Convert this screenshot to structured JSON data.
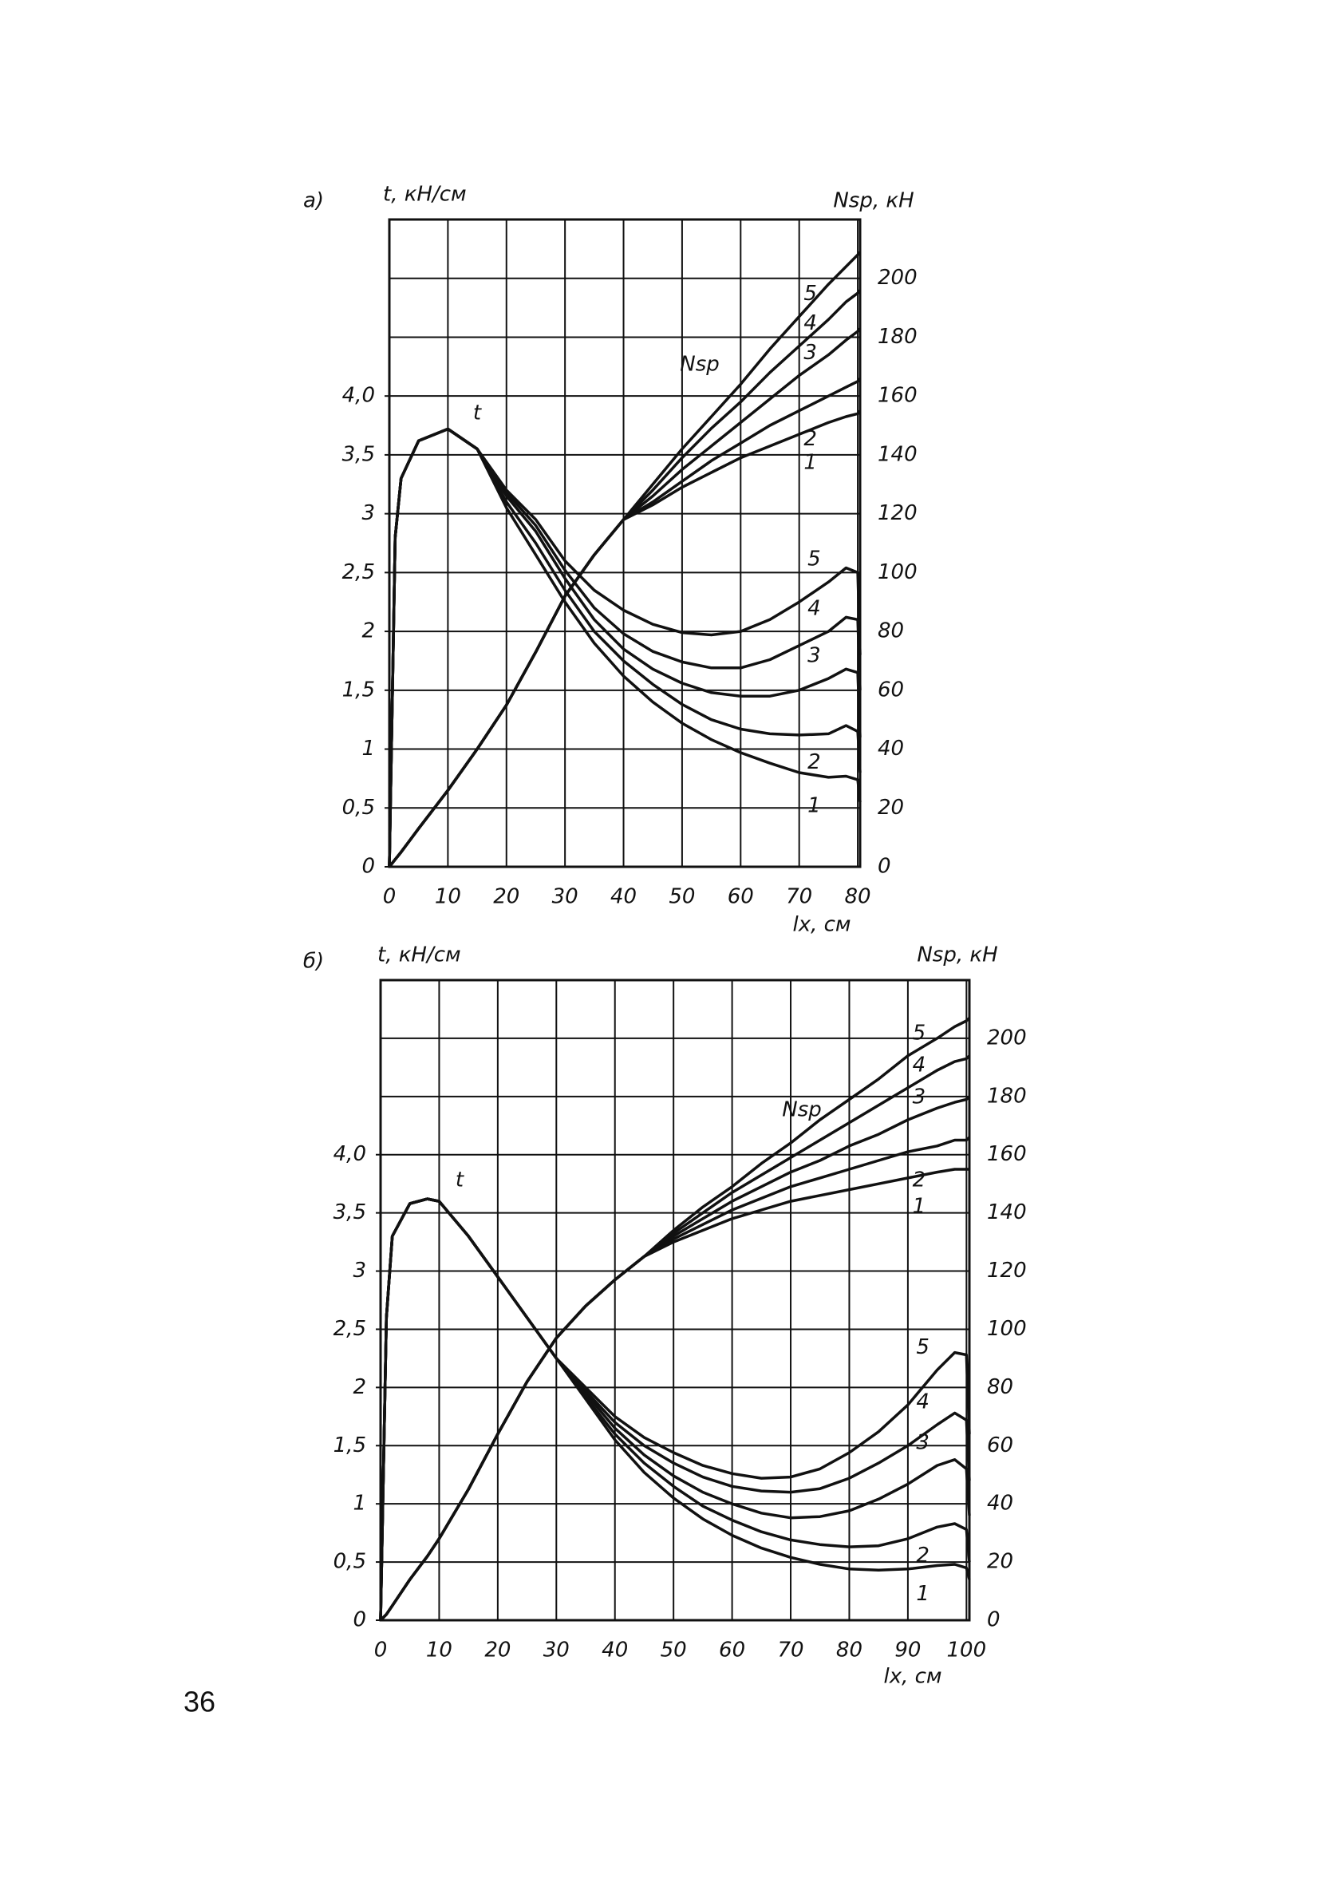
{
  "page_number": "36",
  "chart_data": [
    {
      "type": "line",
      "panel_label": "а)",
      "ylabel": "t, кН/см",
      "y2label": "Nsp, кН",
      "xlabel": "lx, см",
      "annotations": [
        "t",
        "Nsp"
      ],
      "grid": true,
      "color": "#111111",
      "x": [
        0,
        1,
        2,
        5,
        10,
        15,
        20,
        25,
        30,
        35,
        40,
        45,
        50,
        55,
        60,
        65,
        70,
        75,
        78,
        80,
        80.4
      ],
      "xlim": [
        0,
        80.4
      ],
      "xticks": [
        0,
        10,
        20,
        30,
        40,
        50,
        60,
        70,
        80
      ],
      "ylim": [
        0,
        5.5
      ],
      "yticks": [
        0,
        {
          "value": 0.5,
          "label": "0,5"
        },
        1,
        {
          "value": 1.5,
          "label": "1,5"
        },
        2,
        {
          "value": 2.5,
          "label": "2,5"
        },
        3,
        {
          "value": 3.5,
          "label": "3,5"
        },
        {
          "value": 4,
          "label": "4,0"
        }
      ],
      "y2lim": [
        0,
        220
      ],
      "y2ticks": [
        0,
        20,
        40,
        60,
        80,
        100,
        120,
        140,
        160,
        180,
        200
      ],
      "series": [
        {
          "name": "1",
          "values": [
            0,
            2.8,
            3.3,
            3.62,
            3.72,
            3.55,
            3.05,
            2.65,
            2.25,
            1.9,
            1.62,
            1.4,
            1.22,
            1.08,
            0.97,
            0.88,
            0.8,
            0.76,
            0.77,
            0.74,
            0.55
          ]
        },
        {
          "name": "2",
          "values": [
            0,
            2.8,
            3.3,
            3.62,
            3.72,
            3.55,
            3.1,
            2.75,
            2.35,
            2.0,
            1.75,
            1.55,
            1.38,
            1.25,
            1.17,
            1.13,
            1.12,
            1.13,
            1.2,
            1.15,
            0.8
          ]
        },
        {
          "name": "3",
          "values": [
            0,
            2.8,
            3.3,
            3.62,
            3.72,
            3.55,
            3.15,
            2.85,
            2.45,
            2.1,
            1.85,
            1.68,
            1.56,
            1.48,
            1.45,
            1.45,
            1.5,
            1.6,
            1.68,
            1.65,
            1.1
          ]
        },
        {
          "name": "4",
          "values": [
            0,
            2.8,
            3.3,
            3.62,
            3.72,
            3.55,
            3.18,
            2.9,
            2.52,
            2.2,
            1.98,
            1.83,
            1.74,
            1.69,
            1.69,
            1.76,
            1.88,
            2.0,
            2.12,
            2.1,
            1.5
          ]
        },
        {
          "name": "5",
          "values": [
            0,
            2.8,
            3.3,
            3.62,
            3.72,
            3.55,
            3.2,
            2.95,
            2.6,
            2.35,
            2.18,
            2.06,
            1.99,
            1.97,
            2.0,
            2.1,
            2.25,
            2.42,
            2.54,
            2.5,
            1.8
          ]
        },
        {
          "name": "1",
          "axis": "y2",
          "values": [
            0,
            2.5,
            5,
            13,
            26,
            40,
            55,
            73,
            92,
            106,
            118,
            123,
            129,
            134,
            139,
            143,
            147,
            151,
            153,
            154,
            155
          ]
        },
        {
          "name": "2",
          "axis": "y2",
          "values": [
            0,
            2.5,
            5,
            13,
            26,
            40,
            55,
            73,
            92,
            106,
            118,
            124,
            131,
            138,
            144,
            150,
            155,
            160,
            163,
            165,
            166
          ]
        },
        {
          "name": "3",
          "axis": "y2",
          "values": [
            0,
            2.5,
            5,
            13,
            26,
            40,
            55,
            73,
            92,
            106,
            118,
            126,
            135,
            143,
            151,
            159,
            167,
            174,
            179,
            182,
            183
          ]
        },
        {
          "name": "4",
          "axis": "y2",
          "values": [
            0,
            2.5,
            5,
            13,
            26,
            40,
            55,
            73,
            92,
            106,
            118,
            128,
            139,
            149,
            158,
            168,
            177,
            186,
            192,
            195,
            196
          ]
        },
        {
          "name": "5",
          "axis": "y2",
          "values": [
            0,
            2.5,
            5,
            13,
            26,
            40,
            55,
            73,
            92,
            106,
            118,
            130,
            142,
            153,
            164,
            176,
            187,
            198,
            204,
            208,
            209
          ]
        }
      ]
    },
    {
      "type": "line",
      "panel_label": "б)",
      "ylabel": "t, кН/см",
      "y2label": "Nsp, кН",
      "xlabel": "lx, см",
      "annotations": [
        "t",
        "Nsp"
      ],
      "grid": true,
      "color": "#111111",
      "x": [
        0,
        1,
        2,
        5,
        8,
        10,
        15,
        20,
        25,
        30,
        35,
        40,
        45,
        50,
        55,
        60,
        65,
        70,
        75,
        80,
        85,
        90,
        95,
        98,
        100,
        100.5
      ],
      "xlim": [
        0,
        100.5
      ],
      "xticks": [
        0,
        10,
        20,
        30,
        40,
        50,
        60,
        70,
        80,
        90,
        100
      ],
      "ylim": [
        0,
        5.5
      ],
      "yticks": [
        0,
        {
          "value": 0.5,
          "label": "0,5"
        },
        1,
        {
          "value": 1.5,
          "label": "1,5"
        },
        2,
        {
          "value": 2.5,
          "label": "2,5"
        },
        3,
        {
          "value": 3.5,
          "label": "3,5"
        },
        {
          "value": 4,
          "label": "4,0"
        }
      ],
      "y2lim": [
        0,
        220
      ],
      "y2ticks": [
        0,
        20,
        40,
        60,
        80,
        100,
        120,
        140,
        160,
        180,
        200
      ],
      "series": [
        {
          "name": "1",
          "values": [
            0,
            2.6,
            3.3,
            3.58,
            3.62,
            3.6,
            3.3,
            2.95,
            2.6,
            2.25,
            1.9,
            1.55,
            1.27,
            1.05,
            0.87,
            0.73,
            0.62,
            0.54,
            0.48,
            0.44,
            0.43,
            0.44,
            0.47,
            0.48,
            0.45,
            0.35
          ]
        },
        {
          "name": "2",
          "values": [
            0,
            2.6,
            3.3,
            3.58,
            3.62,
            3.6,
            3.3,
            2.95,
            2.6,
            2.25,
            1.92,
            1.6,
            1.35,
            1.15,
            0.98,
            0.86,
            0.76,
            0.69,
            0.65,
            0.63,
            0.64,
            0.7,
            0.8,
            0.83,
            0.78,
            0.5
          ]
        },
        {
          "name": "3",
          "values": [
            0,
            2.6,
            3.3,
            3.58,
            3.62,
            3.6,
            3.3,
            2.95,
            2.6,
            2.25,
            1.95,
            1.65,
            1.42,
            1.24,
            1.1,
            1.0,
            0.92,
            0.88,
            0.89,
            0.94,
            1.04,
            1.17,
            1.33,
            1.38,
            1.3,
            0.9
          ]
        },
        {
          "name": "4",
          "values": [
            0,
            2.6,
            3.3,
            3.58,
            3.62,
            3.6,
            3.3,
            2.95,
            2.6,
            2.25,
            1.97,
            1.7,
            1.5,
            1.35,
            1.23,
            1.15,
            1.11,
            1.1,
            1.13,
            1.22,
            1.35,
            1.5,
            1.68,
            1.78,
            1.72,
            1.2
          ]
        },
        {
          "name": "5",
          "values": [
            0,
            2.6,
            3.3,
            3.58,
            3.62,
            3.6,
            3.3,
            2.95,
            2.6,
            2.25,
            2.0,
            1.75,
            1.57,
            1.44,
            1.33,
            1.26,
            1.22,
            1.23,
            1.3,
            1.44,
            1.62,
            1.85,
            2.15,
            2.3,
            2.28,
            1.6
          ]
        },
        {
          "name": "1",
          "axis": "y2",
          "values": [
            0,
            2,
            5,
            14,
            22,
            28,
            45,
            64,
            82,
            97,
            108,
            117,
            125,
            130,
            134,
            138,
            141,
            144,
            146,
            148,
            150,
            152,
            154,
            155,
            155,
            155
          ]
        },
        {
          "name": "2",
          "axis": "y2",
          "values": [
            0,
            2,
            5,
            14,
            22,
            28,
            45,
            64,
            82,
            97,
            108,
            117,
            125,
            131,
            136,
            141,
            145,
            149,
            152,
            155,
            158,
            161,
            163,
            165,
            165,
            166
          ]
        },
        {
          "name": "3",
          "axis": "y2",
          "values": [
            0,
            2,
            5,
            14,
            22,
            28,
            45,
            64,
            82,
            97,
            108,
            117,
            125,
            132,
            138,
            144,
            149,
            154,
            158,
            163,
            167,
            172,
            176,
            178,
            179,
            180
          ]
        },
        {
          "name": "4",
          "axis": "y2",
          "values": [
            0,
            2,
            5,
            14,
            22,
            28,
            45,
            64,
            82,
            97,
            108,
            117,
            125,
            133,
            140,
            147,
            153,
            159,
            165,
            171,
            177,
            183,
            189,
            192,
            193,
            194
          ]
        },
        {
          "name": "5",
          "axis": "y2",
          "values": [
            0,
            2,
            5,
            14,
            22,
            28,
            45,
            64,
            82,
            97,
            108,
            117,
            125,
            134,
            142,
            149,
            157,
            164,
            172,
            179,
            186,
            194,
            200,
            204,
            206,
            207
          ]
        }
      ]
    }
  ]
}
